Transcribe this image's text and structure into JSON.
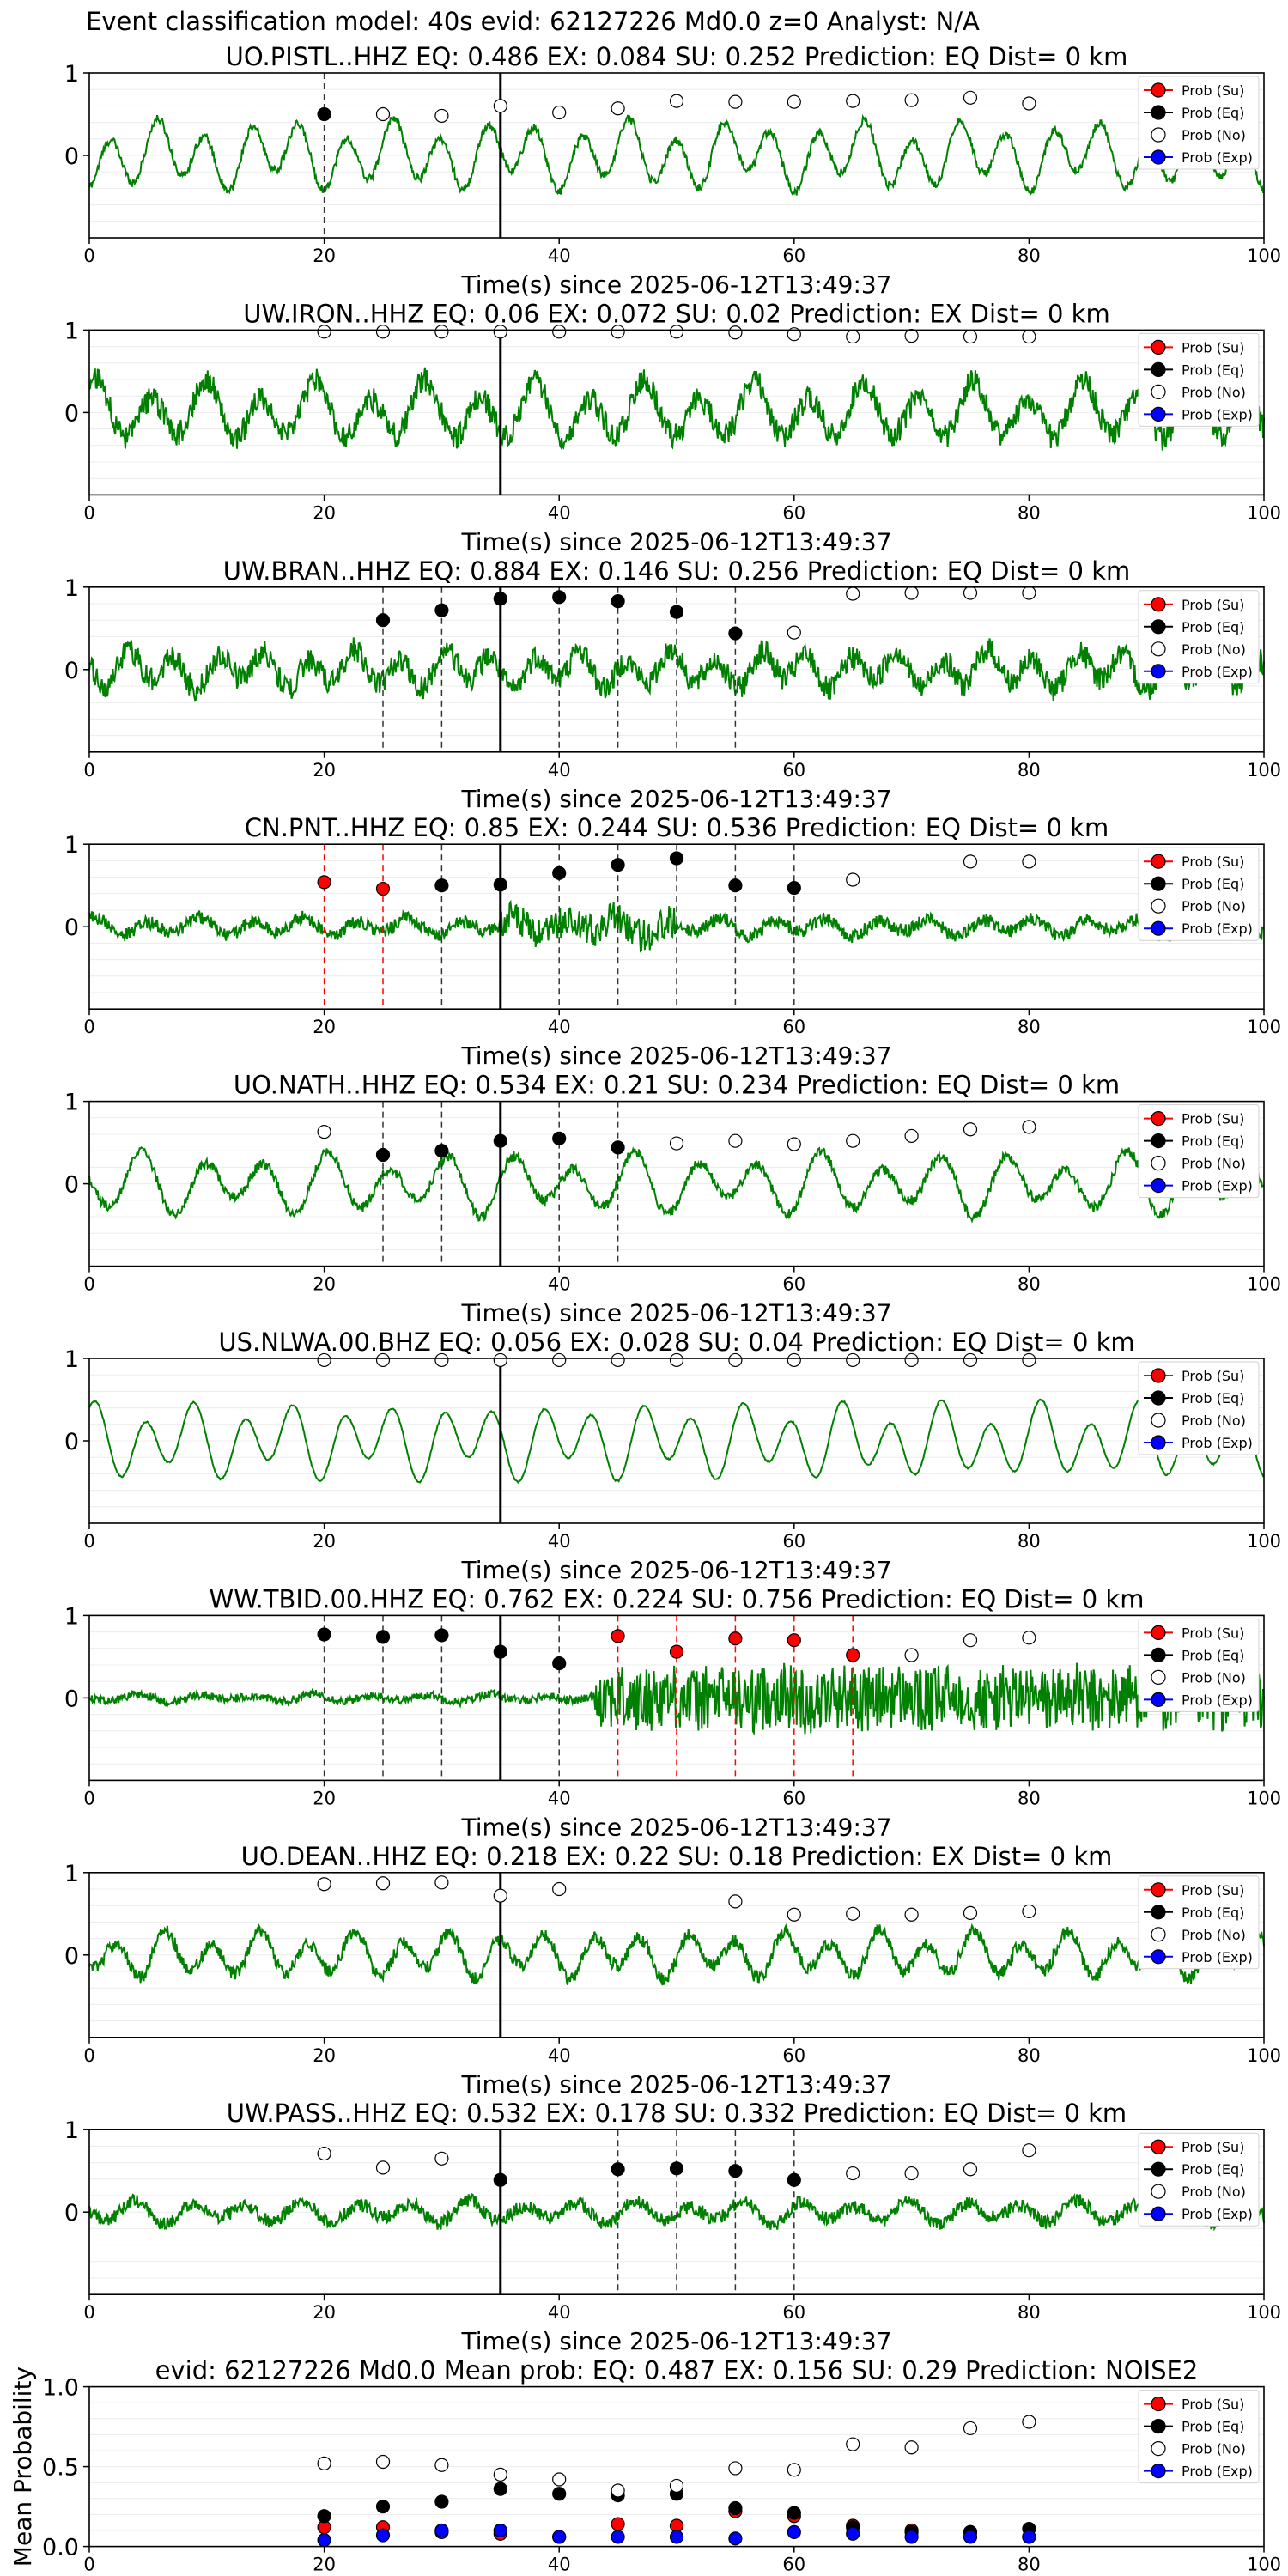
{
  "suptitle": "Event classification model: 40s evid: 62127226 Md0.0 z=0 Analyst: N/A",
  "colors": {
    "waveform": "#008000",
    "su": "#ff0000",
    "eq": "#000000",
    "no": "#ffffff",
    "exp": "#0000ff",
    "vline": "#000000"
  },
  "legend_labels": [
    "Prob (Su)",
    "Prob (Eq)",
    "Prob (No)",
    "Prob (Exp)"
  ],
  "chart_data": [
    {
      "type": "line",
      "title": "UO.PISTL..HHZ   EQ: 0.486  EX: 0.084  SU: 0.252   Prediction: EQ    Dist= 0 km",
      "xlabel": "Time(s) since 2025-06-12T13:49:37",
      "xlim": [
        0,
        100
      ],
      "ylim": [
        -1,
        1
      ],
      "xticks": [
        "0",
        "20",
        "40",
        "60",
        "80",
        "100"
      ],
      "yticks": [
        "1",
        "0"
      ],
      "event_time": 35,
      "dashed_lines": [
        {
          "x": 20,
          "color": "black"
        }
      ],
      "points": [
        {
          "x": 20,
          "y": 0.5,
          "cls": "eq"
        },
        {
          "x": 25,
          "y": 0.5,
          "cls": "no"
        },
        {
          "x": 30,
          "y": 0.48,
          "cls": "no"
        },
        {
          "x": 35,
          "y": 0.6,
          "cls": "no"
        },
        {
          "x": 40,
          "y": 0.52,
          "cls": "no"
        },
        {
          "x": 45,
          "y": 0.57,
          "cls": "no"
        },
        {
          "x": 50,
          "y": 0.66,
          "cls": "no"
        },
        {
          "x": 55,
          "y": 0.65,
          "cls": "no"
        },
        {
          "x": 60,
          "y": 0.65,
          "cls": "no"
        },
        {
          "x": 65,
          "y": 0.66,
          "cls": "no"
        },
        {
          "x": 70,
          "y": 0.67,
          "cls": "no"
        },
        {
          "x": 75,
          "y": 0.7,
          "cls": "no"
        },
        {
          "x": 80,
          "y": 0.63,
          "cls": "no"
        }
      ],
      "waveform_amplitude": 0.45,
      "waveform_noise": 0.05
    },
    {
      "type": "line",
      "title": "UW.IRON..HHZ   EQ: 0.06  EX: 0.072  SU: 0.02   Prediction: EX    Dist= 0 km",
      "xlabel": "Time(s) since 2025-06-12T13:49:37",
      "xlim": [
        0,
        100
      ],
      "ylim": [
        -1,
        1
      ],
      "xticks": [
        "0",
        "20",
        "40",
        "60",
        "80",
        "100"
      ],
      "yticks": [
        "1",
        "0"
      ],
      "event_time": 35,
      "dashed_lines": [],
      "points": [
        {
          "x": 20,
          "y": 0.98,
          "cls": "no"
        },
        {
          "x": 25,
          "y": 0.98,
          "cls": "no"
        },
        {
          "x": 30,
          "y": 0.98,
          "cls": "no"
        },
        {
          "x": 35,
          "y": 0.98,
          "cls": "no"
        },
        {
          "x": 40,
          "y": 0.98,
          "cls": "no"
        },
        {
          "x": 45,
          "y": 0.98,
          "cls": "no"
        },
        {
          "x": 50,
          "y": 0.98,
          "cls": "no"
        },
        {
          "x": 55,
          "y": 0.97,
          "cls": "no"
        },
        {
          "x": 60,
          "y": 0.95,
          "cls": "no"
        },
        {
          "x": 65,
          "y": 0.92,
          "cls": "no"
        },
        {
          "x": 70,
          "y": 0.93,
          "cls": "no"
        },
        {
          "x": 75,
          "y": 0.92,
          "cls": "no"
        },
        {
          "x": 80,
          "y": 0.92,
          "cls": "no"
        }
      ],
      "waveform_amplitude": 0.4,
      "waveform_noise": 0.15
    },
    {
      "type": "line",
      "title": "UW.BRAN..HHZ   EQ: 0.884  EX: 0.146  SU: 0.256   Prediction: EQ    Dist= 0 km",
      "xlabel": "Time(s) since 2025-06-12T13:49:37",
      "xlim": [
        0,
        100
      ],
      "ylim": [
        -1,
        1
      ],
      "xticks": [
        "0",
        "20",
        "40",
        "60",
        "80",
        "100"
      ],
      "yticks": [
        "1",
        "0"
      ],
      "event_time": 35,
      "dashed_lines": [
        {
          "x": 25,
          "color": "black"
        },
        {
          "x": 30,
          "color": "black"
        },
        {
          "x": 35,
          "color": "black"
        },
        {
          "x": 40,
          "color": "black"
        },
        {
          "x": 45,
          "color": "black"
        },
        {
          "x": 50,
          "color": "black"
        },
        {
          "x": 55,
          "color": "black"
        }
      ],
      "points": [
        {
          "x": 25,
          "y": 0.6,
          "cls": "eq"
        },
        {
          "x": 30,
          "y": 0.72,
          "cls": "eq"
        },
        {
          "x": 35,
          "y": 0.86,
          "cls": "eq"
        },
        {
          "x": 40,
          "y": 0.88,
          "cls": "eq"
        },
        {
          "x": 45,
          "y": 0.83,
          "cls": "eq"
        },
        {
          "x": 50,
          "y": 0.7,
          "cls": "eq"
        },
        {
          "x": 55,
          "y": 0.44,
          "cls": "eq"
        },
        {
          "x": 60,
          "y": 0.45,
          "cls": "no"
        },
        {
          "x": 65,
          "y": 0.92,
          "cls": "no"
        },
        {
          "x": 70,
          "y": 0.93,
          "cls": "no"
        },
        {
          "x": 75,
          "y": 0.93,
          "cls": "no"
        },
        {
          "x": 80,
          "y": 0.93,
          "cls": "no"
        }
      ],
      "waveform_amplitude": 0.25,
      "waveform_noise": 0.15
    },
    {
      "type": "line",
      "title": "CN.PNT..HHZ   EQ: 0.85  EX: 0.244  SU: 0.536   Prediction: EQ    Dist= 0 km",
      "xlabel": "Time(s) since 2025-06-12T13:49:37",
      "xlim": [
        0,
        100
      ],
      "ylim": [
        -1,
        1
      ],
      "xticks": [
        "0",
        "20",
        "40",
        "60",
        "80",
        "100"
      ],
      "yticks": [
        "1",
        "0"
      ],
      "event_time": 35,
      "dashed_lines": [
        {
          "x": 20,
          "color": "red"
        },
        {
          "x": 25,
          "color": "red"
        },
        {
          "x": 30,
          "color": "black"
        },
        {
          "x": 35,
          "color": "black"
        },
        {
          "x": 40,
          "color": "black"
        },
        {
          "x": 45,
          "color": "black"
        },
        {
          "x": 50,
          "color": "black"
        },
        {
          "x": 55,
          "color": "black"
        },
        {
          "x": 60,
          "color": "black"
        }
      ],
      "points": [
        {
          "x": 20,
          "y": 0.54,
          "cls": "su"
        },
        {
          "x": 25,
          "y": 0.46,
          "cls": "su"
        },
        {
          "x": 30,
          "y": 0.5,
          "cls": "eq"
        },
        {
          "x": 35,
          "y": 0.51,
          "cls": "eq"
        },
        {
          "x": 40,
          "y": 0.65,
          "cls": "eq"
        },
        {
          "x": 45,
          "y": 0.75,
          "cls": "eq"
        },
        {
          "x": 50,
          "y": 0.83,
          "cls": "eq"
        },
        {
          "x": 55,
          "y": 0.5,
          "cls": "eq"
        },
        {
          "x": 60,
          "y": 0.47,
          "cls": "eq"
        },
        {
          "x": 65,
          "y": 0.57,
          "cls": "no"
        },
        {
          "x": 75,
          "y": 0.79,
          "cls": "no"
        },
        {
          "x": 80,
          "y": 0.79,
          "cls": "no"
        }
      ],
      "waveform_amplitude": 0.12,
      "waveform_noise": 0.08
    },
    {
      "type": "line",
      "title": "UO.NATH..HHZ   EQ: 0.534  EX: 0.21  SU: 0.234   Prediction: EQ    Dist= 0 km",
      "xlabel": "Time(s) since 2025-06-12T13:49:37",
      "xlim": [
        0,
        100
      ],
      "ylim": [
        -1,
        1
      ],
      "xticks": [
        "0",
        "20",
        "40",
        "60",
        "80",
        "100"
      ],
      "yticks": [
        "1",
        "0"
      ],
      "event_time": 35,
      "dashed_lines": [
        {
          "x": 25,
          "color": "black"
        },
        {
          "x": 30,
          "color": "black"
        },
        {
          "x": 35,
          "color": "black"
        },
        {
          "x": 40,
          "color": "black"
        },
        {
          "x": 45,
          "color": "black"
        }
      ],
      "points": [
        {
          "x": 20,
          "y": 0.63,
          "cls": "no"
        },
        {
          "x": 25,
          "y": 0.35,
          "cls": "eq"
        },
        {
          "x": 30,
          "y": 0.4,
          "cls": "eq"
        },
        {
          "x": 35,
          "y": 0.52,
          "cls": "eq"
        },
        {
          "x": 40,
          "y": 0.55,
          "cls": "eq"
        },
        {
          "x": 45,
          "y": 0.44,
          "cls": "eq"
        },
        {
          "x": 50,
          "y": 0.49,
          "cls": "no"
        },
        {
          "x": 55,
          "y": 0.52,
          "cls": "no"
        },
        {
          "x": 60,
          "y": 0.48,
          "cls": "no"
        },
        {
          "x": 65,
          "y": 0.52,
          "cls": "no"
        },
        {
          "x": 70,
          "y": 0.58,
          "cls": "no"
        },
        {
          "x": 75,
          "y": 0.66,
          "cls": "no"
        },
        {
          "x": 80,
          "y": 0.69,
          "cls": "no"
        }
      ],
      "waveform_amplitude": 0.4,
      "waveform_noise": 0.06
    },
    {
      "type": "line",
      "title": "US.NLWA.00.BHZ   EQ: 0.056  EX: 0.028  SU: 0.04   Prediction: EQ    Dist= 0 km",
      "xlabel": "Time(s) since 2025-06-12T13:49:37",
      "xlim": [
        0,
        100
      ],
      "ylim": [
        -1,
        1
      ],
      "xticks": [
        "0",
        "20",
        "40",
        "60",
        "80",
        "100"
      ],
      "yticks": [
        "1",
        "0"
      ],
      "event_time": 35,
      "dashed_lines": [],
      "points": [
        {
          "x": 20,
          "y": 0.98,
          "cls": "no"
        },
        {
          "x": 25,
          "y": 0.98,
          "cls": "no"
        },
        {
          "x": 30,
          "y": 0.98,
          "cls": "no"
        },
        {
          "x": 35,
          "y": 0.98,
          "cls": "no"
        },
        {
          "x": 40,
          "y": 0.98,
          "cls": "no"
        },
        {
          "x": 45,
          "y": 0.98,
          "cls": "no"
        },
        {
          "x": 50,
          "y": 0.98,
          "cls": "no"
        },
        {
          "x": 55,
          "y": 0.98,
          "cls": "no"
        },
        {
          "x": 60,
          "y": 0.98,
          "cls": "no"
        },
        {
          "x": 65,
          "y": 0.98,
          "cls": "no"
        },
        {
          "x": 70,
          "y": 0.98,
          "cls": "no"
        },
        {
          "x": 75,
          "y": 0.98,
          "cls": "no"
        },
        {
          "x": 80,
          "y": 0.98,
          "cls": "no"
        }
      ],
      "waveform_amplitude": 0.5,
      "waveform_noise": 0.01
    },
    {
      "type": "line",
      "title": "WW.TBID.00.HHZ   EQ: 0.762  EX: 0.224  SU: 0.756   Prediction: EQ    Dist= 0 km",
      "xlabel": "Time(s) since 2025-06-12T13:49:37",
      "xlim": [
        0,
        100
      ],
      "ylim": [
        -1,
        1
      ],
      "xticks": [
        "0",
        "20",
        "40",
        "60",
        "80",
        "100"
      ],
      "yticks": [
        "1",
        "0"
      ],
      "event_time": 35,
      "dashed_lines": [
        {
          "x": 20,
          "color": "black"
        },
        {
          "x": 25,
          "color": "black"
        },
        {
          "x": 30,
          "color": "black"
        },
        {
          "x": 35,
          "color": "black"
        },
        {
          "x": 40,
          "color": "black"
        },
        {
          "x": 45,
          "color": "red"
        },
        {
          "x": 50,
          "color": "red"
        },
        {
          "x": 55,
          "color": "red"
        },
        {
          "x": 60,
          "color": "red"
        },
        {
          "x": 65,
          "color": "red"
        }
      ],
      "points": [
        {
          "x": 20,
          "y": 0.77,
          "cls": "eq"
        },
        {
          "x": 25,
          "y": 0.74,
          "cls": "eq"
        },
        {
          "x": 30,
          "y": 0.76,
          "cls": "eq"
        },
        {
          "x": 35,
          "y": 0.56,
          "cls": "eq"
        },
        {
          "x": 40,
          "y": 0.42,
          "cls": "eq"
        },
        {
          "x": 45,
          "y": 0.75,
          "cls": "su"
        },
        {
          "x": 50,
          "y": 0.56,
          "cls": "su"
        },
        {
          "x": 55,
          "y": 0.72,
          "cls": "su"
        },
        {
          "x": 60,
          "y": 0.7,
          "cls": "su"
        },
        {
          "x": 65,
          "y": 0.52,
          "cls": "su"
        },
        {
          "x": 70,
          "y": 0.52,
          "cls": "no"
        },
        {
          "x": 75,
          "y": 0.7,
          "cls": "no"
        },
        {
          "x": 80,
          "y": 0.73,
          "cls": "no"
        }
      ],
      "waveform_amplitude": 0.05,
      "waveform_noise": 0.05
    },
    {
      "type": "line",
      "title": "UO.DEAN..HHZ   EQ: 0.218  EX: 0.22  SU: 0.18   Prediction: EX    Dist= 0 km",
      "xlabel": "Time(s) since 2025-06-12T13:49:37",
      "xlim": [
        0,
        100
      ],
      "ylim": [
        -1,
        1
      ],
      "xticks": [
        "0",
        "20",
        "40",
        "60",
        "80",
        "100"
      ],
      "yticks": [
        "1",
        "0"
      ],
      "event_time": 35,
      "dashed_lines": [],
      "points": [
        {
          "x": 20,
          "y": 0.86,
          "cls": "no"
        },
        {
          "x": 25,
          "y": 0.87,
          "cls": "no"
        },
        {
          "x": 30,
          "y": 0.88,
          "cls": "no"
        },
        {
          "x": 35,
          "y": 0.72,
          "cls": "no"
        },
        {
          "x": 40,
          "y": 0.8,
          "cls": "no"
        },
        {
          "x": 55,
          "y": 0.65,
          "cls": "no"
        },
        {
          "x": 60,
          "y": 0.49,
          "cls": "no"
        },
        {
          "x": 65,
          "y": 0.5,
          "cls": "no"
        },
        {
          "x": 70,
          "y": 0.49,
          "cls": "no"
        },
        {
          "x": 75,
          "y": 0.51,
          "cls": "no"
        },
        {
          "x": 80,
          "y": 0.53,
          "cls": "no"
        }
      ],
      "waveform_amplitude": 0.3,
      "waveform_noise": 0.08
    },
    {
      "type": "line",
      "title": "UW.PASS..HHZ   EQ: 0.532  EX: 0.178  SU: 0.332   Prediction: EQ    Dist= 0 km",
      "xlabel": "Time(s) since 2025-06-12T13:49:37",
      "xlim": [
        0,
        100
      ],
      "ylim": [
        -1,
        1
      ],
      "xticks": [
        "0",
        "20",
        "40",
        "60",
        "80",
        "100"
      ],
      "yticks": [
        "1",
        "0"
      ],
      "event_time": 35,
      "dashed_lines": [
        {
          "x": 45,
          "color": "black"
        },
        {
          "x": 50,
          "color": "black"
        },
        {
          "x": 55,
          "color": "black"
        },
        {
          "x": 60,
          "color": "black"
        }
      ],
      "points": [
        {
          "x": 20,
          "y": 0.71,
          "cls": "no"
        },
        {
          "x": 25,
          "y": 0.54,
          "cls": "no"
        },
        {
          "x": 30,
          "y": 0.65,
          "cls": "no"
        },
        {
          "x": 35,
          "y": 0.39,
          "cls": "eq"
        },
        {
          "x": 45,
          "y": 0.52,
          "cls": "eq"
        },
        {
          "x": 50,
          "y": 0.53,
          "cls": "eq"
        },
        {
          "x": 55,
          "y": 0.5,
          "cls": "eq"
        },
        {
          "x": 60,
          "y": 0.39,
          "cls": "eq"
        },
        {
          "x": 65,
          "y": 0.47,
          "cls": "no"
        },
        {
          "x": 70,
          "y": 0.47,
          "cls": "no"
        },
        {
          "x": 75,
          "y": 0.52,
          "cls": "no"
        },
        {
          "x": 80,
          "y": 0.75,
          "cls": "no"
        }
      ],
      "waveform_amplitude": 0.15,
      "waveform_noise": 0.08
    },
    {
      "type": "scatter",
      "title": "evid: 62127226  Md0.0   Mean prob:    EQ: 0.487  EX: 0.156  SU: 0.29   Prediction: NOISE2",
      "xlabel": "",
      "ylabel": "Mean Probability",
      "xlim": [
        0,
        100
      ],
      "ylim": [
        0,
        1
      ],
      "xticks": [
        "0",
        "20",
        "40",
        "60",
        "80",
        "100"
      ],
      "yticks": [
        "1.0",
        "0.5",
        "0.0"
      ],
      "x": [
        20,
        25,
        30,
        35,
        40,
        45,
        50,
        55,
        60,
        65,
        70,
        75,
        80
      ],
      "series": [
        {
          "name": "Prob (Su)",
          "cls": "su",
          "values": [
            0.12,
            0.12,
            0.09,
            0.08,
            0.06,
            0.14,
            0.13,
            0.22,
            0.19,
            0.13,
            0.1,
            0.09,
            0.06
          ]
        },
        {
          "name": "Prob (Eq)",
          "cls": "eq",
          "values": [
            0.19,
            0.25,
            0.28,
            0.36,
            0.33,
            0.32,
            0.33,
            0.24,
            0.21,
            0.12,
            0.09,
            0.09,
            0.11
          ]
        },
        {
          "name": "Prob (No)",
          "cls": "no",
          "values": [
            0.52,
            0.53,
            0.51,
            0.45,
            0.42,
            0.35,
            0.38,
            0.49,
            0.48,
            0.64,
            0.62,
            0.74,
            0.78
          ]
        },
        {
          "name": "Prob (Exp)",
          "cls": "exp",
          "values": [
            0.04,
            0.07,
            0.1,
            0.1,
            0.06,
            0.06,
            0.06,
            0.05,
            0.09,
            0.08,
            0.06,
            0.06,
            0.06
          ]
        }
      ]
    }
  ]
}
